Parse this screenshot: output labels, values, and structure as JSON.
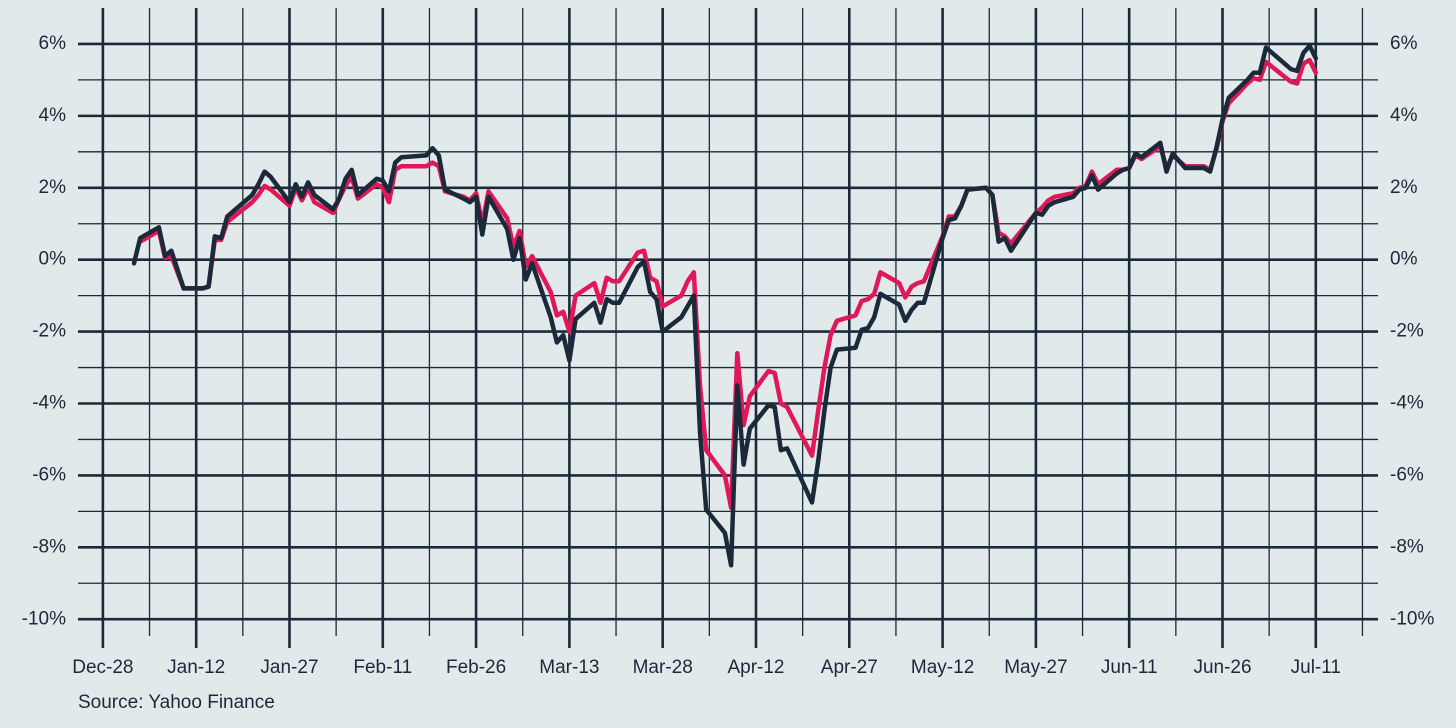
{
  "chart_data": {
    "type": "line",
    "source": "Source: Yahoo Finance",
    "x": [
      "Jan-02",
      "Jan-03",
      "Jan-06",
      "Jan-07",
      "Jan-08",
      "Jan-10",
      "Jan-13",
      "Jan-14",
      "Jan-15",
      "Jan-16",
      "Jan-17",
      "Jan-21",
      "Jan-22",
      "Jan-23",
      "Jan-24",
      "Jan-27",
      "Jan-28",
      "Jan-29",
      "Jan-30",
      "Jan-31",
      "Feb-03",
      "Feb-04",
      "Feb-05",
      "Feb-06",
      "Feb-07",
      "Feb-10",
      "Feb-11",
      "Feb-12",
      "Feb-13",
      "Feb-14",
      "Feb-18",
      "Feb-19",
      "Feb-20",
      "Feb-21",
      "Feb-24",
      "Feb-25",
      "Feb-26",
      "Feb-27",
      "Feb-28",
      "Mar-03",
      "Mar-04",
      "Mar-05",
      "Mar-06",
      "Mar-07",
      "Mar-10",
      "Mar-11",
      "Mar-12",
      "Mar-13",
      "Mar-14",
      "Mar-17",
      "Mar-18",
      "Mar-19",
      "Mar-20",
      "Mar-21",
      "Mar-24",
      "Mar-25",
      "Mar-26",
      "Mar-27",
      "Mar-28",
      "Mar-31",
      "Apr-01",
      "Apr-02",
      "Apr-03",
      "Apr-04",
      "Apr-07",
      "Apr-08",
      "Apr-09",
      "Apr-10",
      "Apr-11",
      "Apr-14",
      "Apr-15",
      "Apr-16",
      "Apr-17",
      "Apr-21",
      "Apr-22",
      "Apr-23",
      "Apr-24",
      "Apr-25",
      "Apr-28",
      "Apr-29",
      "Apr-30",
      "May-01",
      "May-02",
      "May-05",
      "May-06",
      "May-07",
      "May-08",
      "May-09",
      "May-12",
      "May-13",
      "May-14",
      "May-15",
      "May-16",
      "May-19",
      "May-20",
      "May-21",
      "May-22",
      "May-23",
      "May-27",
      "May-28",
      "May-29",
      "May-30",
      "Jun-02",
      "Jun-03",
      "Jun-04",
      "Jun-05",
      "Jun-06",
      "Jun-09",
      "Jun-10",
      "Jun-11",
      "Jun-12",
      "Jun-13",
      "Jun-16",
      "Jun-17",
      "Jun-18",
      "Jun-20",
      "Jun-23",
      "Jun-24",
      "Jun-25",
      "Jun-26",
      "Jun-27",
      "Jun-30",
      "Jul-01",
      "Jul-02",
      "Jul-03",
      "Jul-07",
      "Jul-08",
      "Jul-09",
      "Jul-10",
      "Jul-11"
    ],
    "series": [
      {
        "color": "#e0185a",
        "values": [
          null,
          0.5,
          0.8,
          0.05,
          0.1,
          -0.8,
          -0.8,
          -0.75,
          0.55,
          0.55,
          1.05,
          1.6,
          1.8,
          2.05,
          1.95,
          1.5,
          2.0,
          1.65,
          2.0,
          1.6,
          1.3,
          1.7,
          2.05,
          2.3,
          1.7,
          2.1,
          2.0,
          1.6,
          2.5,
          2.6,
          2.6,
          2.7,
          2.6,
          1.9,
          1.75,
          1.65,
          1.85,
          1.0,
          1.9,
          1.15,
          0.35,
          0.8,
          -0.2,
          0.1,
          -0.9,
          -1.55,
          -1.45,
          -2.0,
          -1.0,
          -0.65,
          -1.2,
          -0.5,
          -0.6,
          -0.6,
          0.2,
          0.25,
          -0.5,
          -0.6,
          -1.3,
          -1.0,
          -0.6,
          -0.35,
          -3.5,
          -5.3,
          -6.0,
          -6.9,
          -2.6,
          -4.6,
          -3.8,
          -3.1,
          -3.15,
          -4.0,
          -4.1,
          -5.45,
          -4.2,
          -3.0,
          -2.1,
          -1.7,
          -1.55,
          -1.15,
          -1.1,
          -0.95,
          -0.35,
          -0.65,
          -1.05,
          -0.75,
          -0.65,
          -0.6,
          0.65,
          1.2,
          1.2,
          1.5,
          1.95,
          2.0,
          1.8,
          0.75,
          0.65,
          0.45,
          1.3,
          1.45,
          1.65,
          1.75,
          1.85,
          2.0,
          2.05,
          2.45,
          2.1,
          2.5,
          2.5,
          2.55,
          2.9,
          2.8,
          3.15,
          2.55,
          2.9,
          2.6,
          2.6,
          2.5,
          3.05,
          3.85,
          4.35,
          4.9,
          5.05,
          5.0,
          5.5,
          4.95,
          4.9,
          5.45,
          5.55,
          5.2
        ]
      },
      {
        "color": "#1b2a3a",
        "values": [
          -0.1,
          0.6,
          0.9,
          0.1,
          0.25,
          -0.8,
          -0.8,
          -0.75,
          0.65,
          0.6,
          1.2,
          1.8,
          2.1,
          2.45,
          2.3,
          1.6,
          2.1,
          1.75,
          2.15,
          1.8,
          1.4,
          1.7,
          2.25,
          2.5,
          1.8,
          2.25,
          2.2,
          1.9,
          2.7,
          2.85,
          2.9,
          3.1,
          2.9,
          1.95,
          1.7,
          1.6,
          1.75,
          0.7,
          1.75,
          0.85,
          0.0,
          0.6,
          -0.55,
          -0.1,
          -1.6,
          -2.3,
          -2.1,
          -2.8,
          -1.65,
          -1.2,
          -1.75,
          -1.1,
          -1.2,
          -1.2,
          -0.2,
          -0.05,
          -0.9,
          -1.1,
          -2.0,
          -1.6,
          -1.3,
          -1.0,
          -4.8,
          -6.95,
          -7.6,
          -8.5,
          -3.5,
          -5.7,
          -4.7,
          -4.05,
          -4.1,
          -5.3,
          -5.25,
          -6.75,
          -5.6,
          -4.2,
          -3.0,
          -2.5,
          -2.45,
          -1.95,
          -1.9,
          -1.6,
          -0.95,
          -1.25,
          -1.7,
          -1.4,
          -1.2,
          -1.2,
          0.6,
          1.1,
          1.15,
          1.5,
          1.95,
          2.0,
          1.8,
          0.5,
          0.6,
          0.25,
          1.3,
          1.25,
          1.5,
          1.6,
          1.75,
          1.95,
          2.0,
          2.35,
          1.95,
          2.4,
          2.5,
          2.55,
          2.95,
          2.85,
          3.25,
          2.45,
          2.95,
          2.55,
          2.55,
          2.45,
          3.1,
          3.9,
          4.5,
          5.0,
          5.2,
          5.2,
          5.9,
          5.3,
          5.25,
          5.75,
          5.95,
          5.6
        ]
      }
    ],
    "xlim": [
      "Dec-24",
      "Jul-21"
    ],
    "xticks": [
      "Dec-28",
      "Jan-12",
      "Jan-27",
      "Feb-11",
      "Feb-26",
      "Mar-13",
      "Mar-28",
      "Apr-12",
      "Apr-27",
      "May-12",
      "May-27",
      "Jun-11",
      "Jun-26",
      "Jul-11"
    ],
    "ylim": [
      -10.8,
      7
    ],
    "yticks": [
      {
        "value": 6,
        "label": "6%"
      },
      {
        "value": 4,
        "label": "4%"
      },
      {
        "value": 2,
        "label": "2%"
      },
      {
        "value": 0,
        "label": "0%"
      },
      {
        "value": -2,
        "label": "-2%"
      },
      {
        "value": -4,
        "label": "-4%"
      },
      {
        "value": -6,
        "label": "-6%"
      },
      {
        "value": -8,
        "label": "-8%"
      },
      {
        "value": -10,
        "label": "-10%"
      }
    ],
    "grid": true,
    "minor_grid": true
  }
}
